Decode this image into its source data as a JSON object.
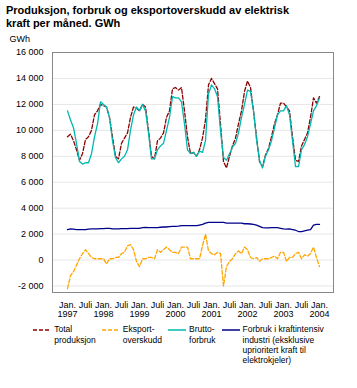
{
  "chart_data": {
    "type": "line",
    "title": "Produksjon, forbruk og eksportoverskudd av elektrisk\nkraft per måned. GWh",
    "ylabel": "GWh",
    "categories": [
      "Jan.\n1997",
      null,
      null,
      null,
      null,
      null,
      "Juli",
      null,
      null,
      null,
      null,
      null,
      "Jan.\n1998",
      null,
      null,
      null,
      null,
      null,
      "Juli",
      null,
      null,
      null,
      null,
      null,
      "Jan.\n1999",
      null,
      null,
      null,
      null,
      null,
      "Juli",
      null,
      null,
      null,
      null,
      null,
      "Jan.\n2000",
      null,
      null,
      null,
      null,
      null,
      "Juli",
      null,
      null,
      null,
      null,
      null,
      "Jan.\n2001",
      null,
      null,
      null,
      null,
      null,
      "Juli",
      null,
      null,
      null,
      null,
      null,
      "Jan.\n2002",
      null,
      null,
      null,
      null,
      null,
      "Juli",
      null,
      null,
      null,
      null,
      null,
      "Jan.\n2003",
      null,
      null,
      null,
      null,
      null,
      "Juli",
      null,
      null,
      null,
      null,
      null,
      "Jan.\n2004"
    ],
    "series": [
      {
        "name": "Total\nproduksjon",
        "color": "#8B0000",
        "line_style": "dashed",
        "values": [
          9500,
          9700,
          9200,
          8500,
          7700,
          8200,
          9300,
          9500,
          10000,
          11200,
          11500,
          12000,
          11900,
          11800,
          11000,
          9500,
          8000,
          7800,
          9000,
          9400,
          9800,
          11000,
          11800,
          11700,
          11500,
          12000,
          11800,
          10000,
          8000,
          7800,
          9200,
          9400,
          9800,
          11000,
          11500,
          13200,
          13300,
          13100,
          13300,
          11500,
          9500,
          8200,
          8300,
          8000,
          8500,
          9400,
          10800,
          13500,
          14000,
          13600,
          13200,
          10500,
          7600,
          7100,
          8000,
          8800,
          9400,
          10500,
          11500,
          13000,
          13800,
          13300,
          11500,
          9500,
          7600,
          7200,
          8100,
          8600,
          9500,
          10500,
          11200,
          12100,
          12100,
          11800,
          11500,
          9500,
          7700,
          7600,
          8800,
          9300,
          9800,
          11000,
          12500,
          12100,
          12600
        ]
      },
      {
        "name": "Eksport-\noverskudd",
        "color": "#FFA500",
        "line_style": "dashed",
        "values": [
          -2200,
          -1200,
          -900,
          -400,
          100,
          500,
          800,
          500,
          200,
          100,
          100,
          100,
          100,
          -300,
          100,
          100,
          200,
          200,
          500,
          600,
          1100,
          1200,
          800,
          -100,
          -500,
          100,
          100,
          200,
          200,
          100,
          800,
          600,
          800,
          1000,
          800,
          600,
          600,
          500,
          1000,
          1000,
          1000,
          100,
          100,
          100,
          100,
          1100,
          2000,
          700,
          500,
          400,
          600,
          500,
          -2000,
          -500,
          -100,
          100,
          500,
          700,
          500,
          1000,
          800,
          200,
          100,
          200,
          -100,
          100,
          100,
          100,
          200,
          300,
          100,
          600,
          600,
          -100,
          200,
          200,
          500,
          600,
          100,
          400,
          300,
          500,
          1000,
          200,
          -500
        ]
      },
      {
        "name": "Brutto-\nforbruk",
        "color": "#00B8B0",
        "line_style": "solid",
        "values": [
          11500,
          10800,
          10200,
          9000,
          7600,
          7400,
          7500,
          7500,
          8200,
          9500,
          10500,
          12200,
          12000,
          11800,
          11000,
          9200,
          7900,
          7500,
          7800,
          8000,
          8500,
          10000,
          11200,
          11800,
          11500,
          12000,
          11500,
          9800,
          7800,
          7800,
          8500,
          8800,
          9000,
          10000,
          11000,
          12600,
          12500,
          12500,
          12200,
          10500,
          8500,
          8200,
          8300,
          8000,
          8400,
          8300,
          9200,
          12800,
          13500,
          13200,
          12600,
          10000,
          7900,
          7700,
          8200,
          8700,
          9000,
          9800,
          11000,
          12000,
          13100,
          13000,
          11500,
          9300,
          7700,
          7100,
          8000,
          8500,
          9200,
          10200,
          11200,
          11500,
          11500,
          11900,
          11200,
          9200,
          7200,
          7200,
          8500,
          8900,
          9500,
          10500,
          11500,
          11900,
          12500
        ]
      },
      {
        "name": "Forbruk i kraftintensiv\nindustri (eksklusive\nuprioritert kraft til\nelektrokjeler)",
        "color": "#00008B",
        "line_style": "solid",
        "values": [
          2350,
          2400,
          2380,
          2350,
          2350,
          2350,
          2350,
          2380,
          2400,
          2400,
          2400,
          2420,
          2430,
          2450,
          2450,
          2400,
          2400,
          2400,
          2430,
          2430,
          2430,
          2450,
          2450,
          2450,
          2450,
          2500,
          2520,
          2500,
          2500,
          2500,
          2500,
          2530,
          2550,
          2550,
          2580,
          2600,
          2600,
          2620,
          2650,
          2650,
          2650,
          2650,
          2650,
          2650,
          2700,
          2750,
          2850,
          2900,
          2900,
          2900,
          2900,
          2900,
          2900,
          2850,
          2850,
          2850,
          2850,
          2850,
          2850,
          2800,
          2800,
          2780,
          2750,
          2700,
          2600,
          2500,
          2480,
          2480,
          2500,
          2500,
          2500,
          2450,
          2400,
          2380,
          2400,
          2350,
          2300,
          2200,
          2200,
          2250,
          2300,
          2350,
          2700,
          2750,
          2750
        ]
      }
    ],
    "ylim": [
      -2500,
      16000
    ],
    "yticks": [
      {
        "value": -2000,
        "label": "-2 000"
      },
      0,
      {
        "value": 2000,
        "label": "2 000"
      },
      {
        "value": 4000,
        "label": "4 000"
      },
      {
        "value": 6000,
        "label": "6 000"
      },
      {
        "value": 8000,
        "label": "8 000"
      },
      {
        "value": 10000,
        "label": "10 000"
      },
      {
        "value": 12000,
        "label": "12 000"
      },
      {
        "value": 14000,
        "label": "14 000"
      },
      {
        "value": 16000,
        "label": "16 000"
      }
    ],
    "grid": true,
    "legend": "bottom"
  }
}
